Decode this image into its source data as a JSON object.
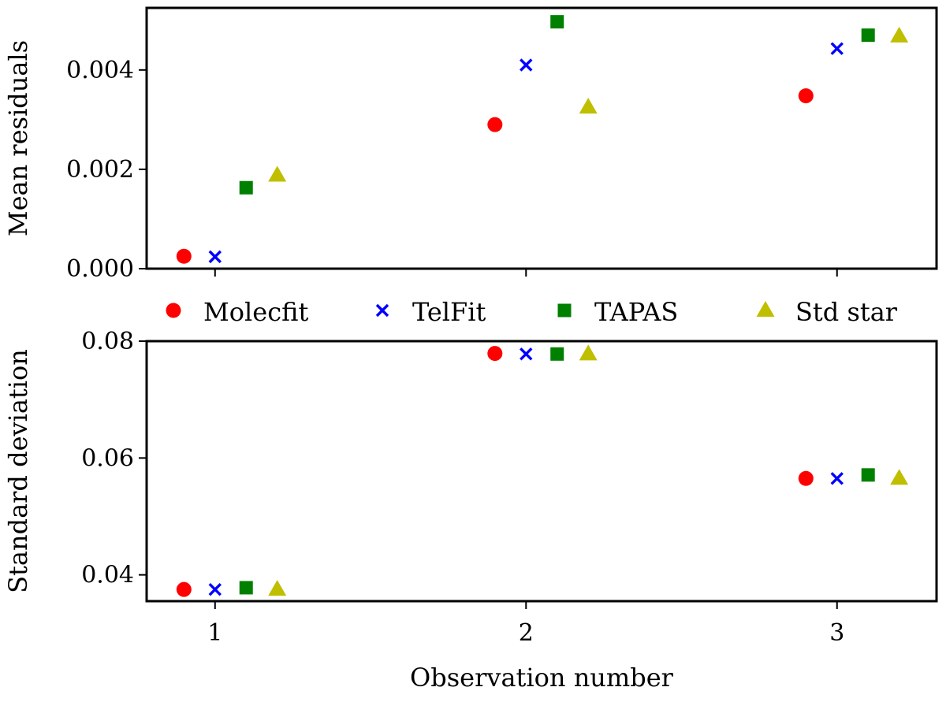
{
  "colors": {
    "Molecfit": "#ff0000",
    "TelFit": "#0000ff",
    "TAPAS": "#008000",
    "Std star": "#bfbf00"
  },
  "chart_data": [
    {
      "type": "scatter",
      "title": "",
      "xlabel": "",
      "ylabel": "Mean residuals",
      "xlim": [
        0.78,
        3.32
      ],
      "ylim": [
        0.0,
        0.00525
      ],
      "xticks": [
        1,
        2,
        3
      ],
      "xtick_labels": [
        "",
        "",
        ""
      ],
      "yticks": [
        0.0,
        0.002,
        0.004
      ],
      "ytick_labels": [
        "0.000",
        "0.002",
        "0.004"
      ],
      "grid": false,
      "series": [
        {
          "name": "Molecfit",
          "marker": "circle",
          "x": [
            0.9,
            1.9,
            2.9
          ],
          "y": [
            0.00025,
            0.0029,
            0.00348
          ]
        },
        {
          "name": "TelFit",
          "marker": "x",
          "x": [
            1.0,
            2.0,
            3.0
          ],
          "y": [
            0.00024,
            0.0041,
            0.00443
          ]
        },
        {
          "name": "TAPAS",
          "marker": "square",
          "x": [
            1.1,
            2.1,
            3.1
          ],
          "y": [
            0.00163,
            0.00497,
            0.0047
          ]
        },
        {
          "name": "Std star",
          "marker": "triangle",
          "x": [
            1.2,
            2.2,
            3.2
          ],
          "y": [
            0.00188,
            0.00325,
            0.00468
          ]
        }
      ]
    },
    {
      "type": "scatter",
      "title": "",
      "xlabel": "Observation number",
      "ylabel": "Standard deviation",
      "xlim": [
        0.78,
        3.32
      ],
      "ylim": [
        0.0355,
        0.08
      ],
      "xticks": [
        1,
        2,
        3
      ],
      "xtick_labels": [
        "1",
        "2",
        "3"
      ],
      "yticks": [
        0.04,
        0.06,
        0.08
      ],
      "ytick_labels": [
        "0.04",
        "0.06",
        "0.08"
      ],
      "grid": false,
      "series": [
        {
          "name": "Molecfit",
          "marker": "circle",
          "x": [
            0.9,
            1.9,
            2.9
          ],
          "y": [
            0.0375,
            0.0779,
            0.0565
          ]
        },
        {
          "name": "TelFit",
          "marker": "x",
          "x": [
            1.0,
            2.0,
            3.0
          ],
          "y": [
            0.0375,
            0.0778,
            0.0565
          ]
        },
        {
          "name": "TAPAS",
          "marker": "square",
          "x": [
            1.1,
            2.1,
            3.1
          ],
          "y": [
            0.0378,
            0.0778,
            0.0571
          ]
        },
        {
          "name": "Std star",
          "marker": "triangle",
          "x": [
            1.2,
            2.2,
            3.2
          ],
          "y": [
            0.0375,
            0.0778,
            0.0565
          ]
        }
      ]
    }
  ],
  "legend": {
    "placement": "between-panels",
    "entries": [
      "Molecfit",
      "TelFit",
      "TAPAS",
      "Std star"
    ]
  }
}
